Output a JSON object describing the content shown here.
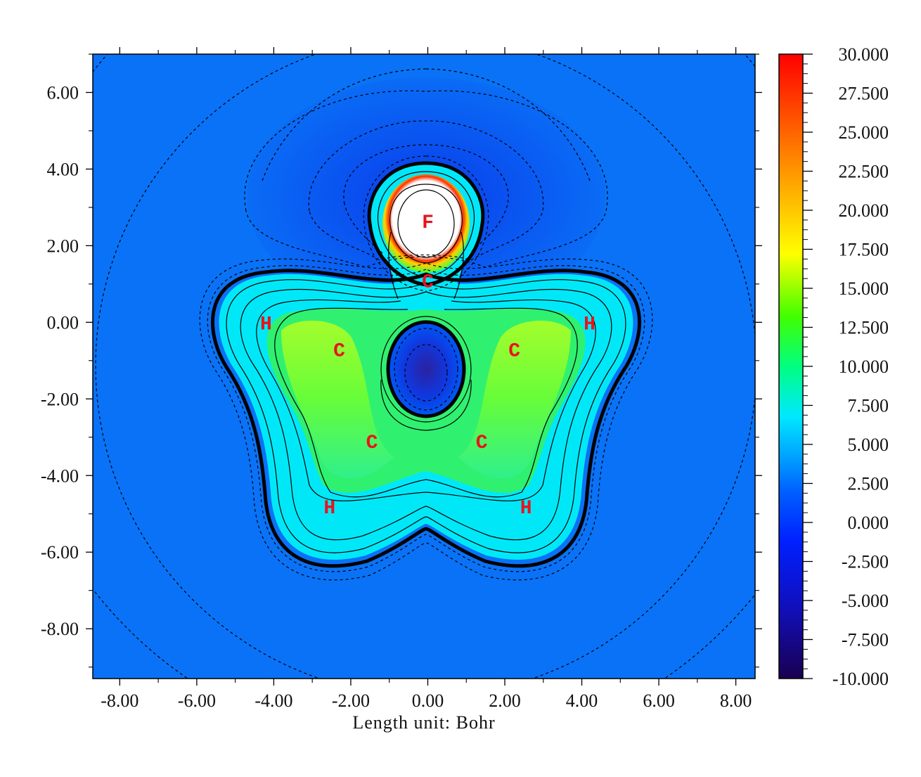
{
  "chart_data": {
    "type": "heatmap",
    "title": "",
    "xlabel": "Length unit: Bohr",
    "ylabel": "",
    "xlim": [
      -8.7,
      8.5
    ],
    "ylim": [
      -9.3,
      7.0
    ],
    "x_ticks": [
      "-8.00",
      "-6.00",
      "-4.00",
      "-2.00",
      "0.00",
      "2.00",
      "4.00",
      "6.00",
      "8.00"
    ],
    "x_tick_values": [
      -8,
      -6,
      -4,
      -2,
      0,
      2,
      4,
      6,
      8
    ],
    "y_ticks": [
      "6.00",
      "4.00",
      "2.00",
      "0.00",
      "-2.00",
      "-4.00",
      "-6.00",
      "-8.00"
    ],
    "y_tick_values": [
      6,
      4,
      2,
      0,
      -2,
      -4,
      -6,
      -8
    ],
    "colorbar": {
      "min": -10.0,
      "max": 30.0,
      "ticks": [
        "30.000",
        "27.500",
        "25.000",
        "22.500",
        "20.000",
        "17.500",
        "15.000",
        "12.500",
        "10.000",
        "7.500",
        "5.000",
        "2.500",
        "0.000",
        "-2.500",
        "-5.000",
        "-7.500",
        "-10.000"
      ],
      "tick_values": [
        30,
        27.5,
        25,
        22.5,
        20,
        17.5,
        15,
        12.5,
        10,
        7.5,
        5,
        2.5,
        0,
        -2.5,
        -5,
        -7.5,
        -10
      ],
      "colors": [
        "#1a0050",
        "#0000ff",
        "#0080ff",
        "#00ffff",
        "#00ff00",
        "#ffff00",
        "#ff8000",
        "#ff0000"
      ]
    },
    "atoms": [
      {
        "label": "F",
        "x": 0.0,
        "y": 2.65
      },
      {
        "label": "C",
        "x": 0.0,
        "y": 1.1
      },
      {
        "label": "C",
        "x": -2.3,
        "y": -0.7
      },
      {
        "label": "C",
        "x": 2.25,
        "y": -0.7
      },
      {
        "label": "C",
        "x": -1.45,
        "y": -3.1
      },
      {
        "label": "C",
        "x": 1.4,
        "y": -3.1
      },
      {
        "label": "H",
        "x": -4.2,
        "y": 0.0
      },
      {
        "label": "H",
        "x": 4.2,
        "y": 0.0
      },
      {
        "label": "H",
        "x": -2.55,
        "y": -4.8
      },
      {
        "label": "H",
        "x": 2.55,
        "y": -4.8
      }
    ],
    "grid": false,
    "legend": "colorbar-right"
  }
}
